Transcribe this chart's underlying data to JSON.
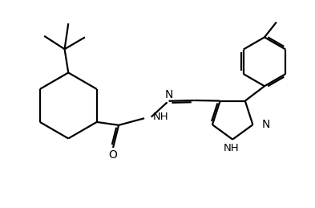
{
  "bg_color": "#ffffff",
  "line_color": "#000000",
  "bond_width": 1.6,
  "figsize": [
    3.93,
    2.59
  ],
  "dpi": 100,
  "xlim": [
    0,
    10
  ],
  "ylim": [
    0,
    6.6
  ]
}
